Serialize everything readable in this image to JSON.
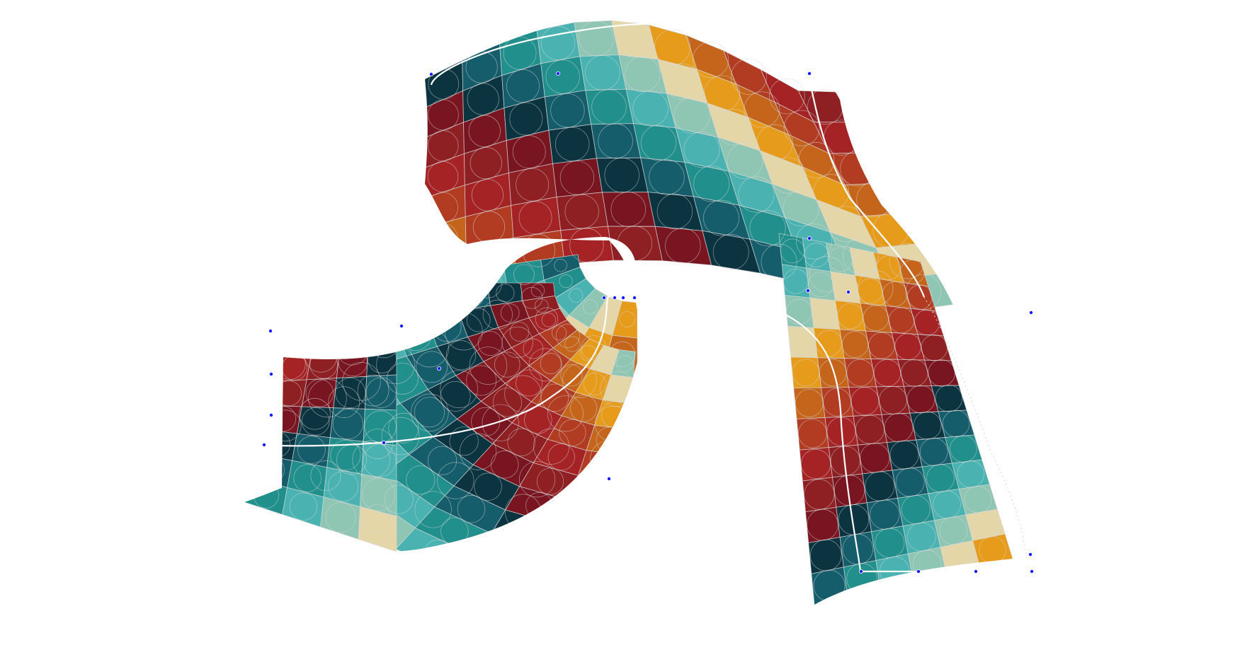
{
  "palette": {
    "navy": "#0b3440",
    "petrol": "#155d6b",
    "teal": "#218f8c",
    "aqua": "#4ab3b2",
    "mint": "#8ec6b3",
    "cream": "#e4d6a7",
    "amber": "#e69b1b",
    "orange": "#c5651c",
    "rust": "#b23c22",
    "red": "#a52325",
    "crimson": "#8e1f23",
    "maroon": "#781520",
    "grid_line": "#d8d8d8",
    "path_line": "#ffffff",
    "handle": "#1a1aff"
  },
  "color_cycle": [
    "navy",
    "petrol",
    "teal",
    "aqua",
    "mint",
    "cream",
    "amber",
    "orange",
    "rust",
    "red",
    "crimson",
    "maroon"
  ],
  "icons": {
    "control_point": "control-point-icon"
  }
}
